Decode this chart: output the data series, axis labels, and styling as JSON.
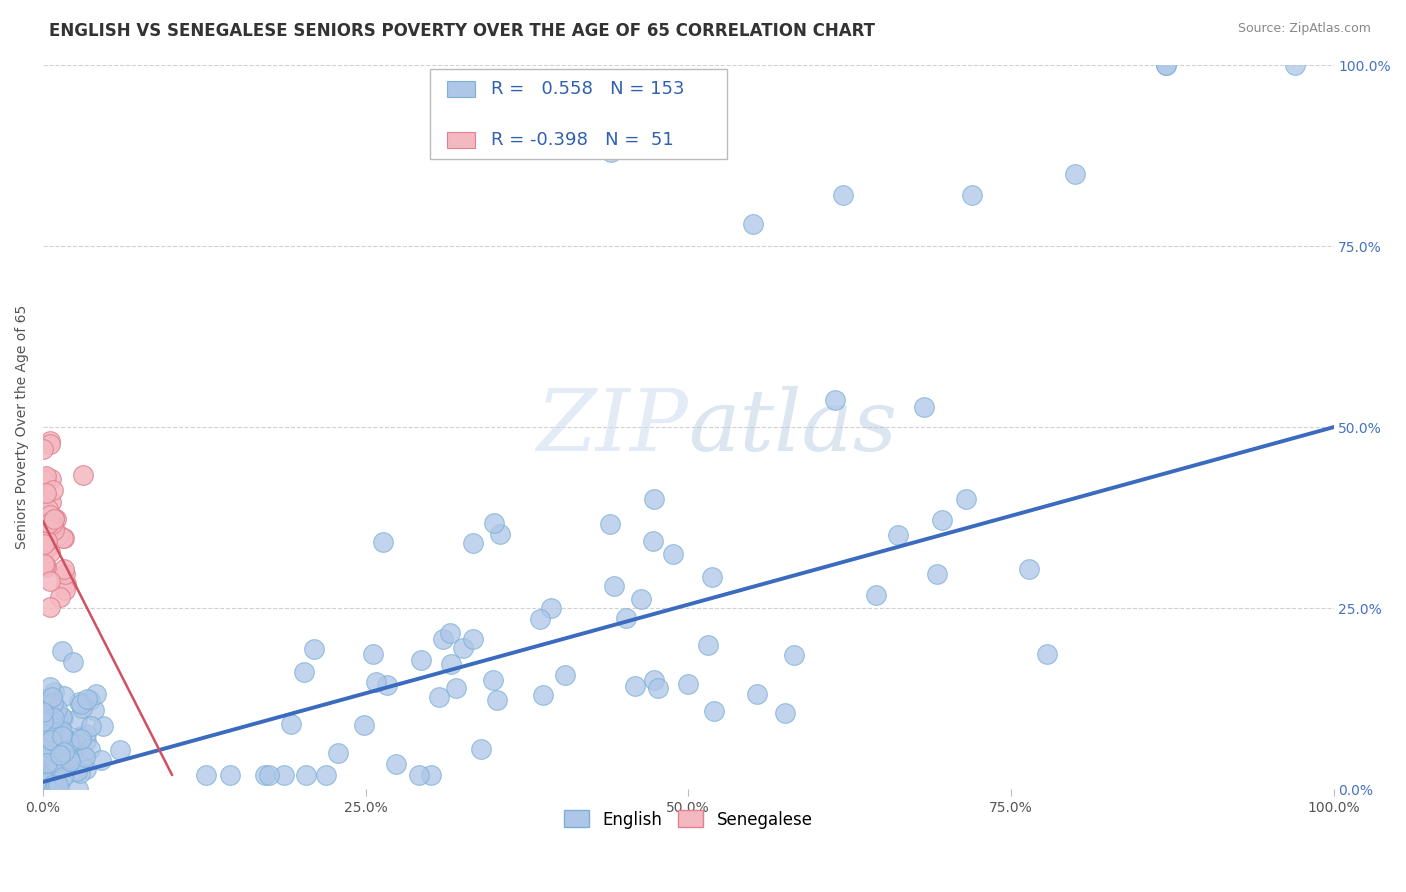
{
  "title": "ENGLISH VS SENEGALESE SENIORS POVERTY OVER THE AGE OF 65 CORRELATION CHART",
  "source": "Source: ZipAtlas.com",
  "ylabel": "Seniors Poverty Over the Age of 65",
  "xlim": [
    0.0,
    1.0
  ],
  "ylim": [
    0.0,
    1.0
  ],
  "xticks": [
    0.0,
    0.25,
    0.5,
    0.75,
    1.0
  ],
  "xticklabels": [
    "0.0%",
    "25.0%",
    "50.0%",
    "75.0%",
    "100.0%"
  ],
  "ytick_positions": [
    0.0,
    0.25,
    0.5,
    0.75,
    1.0
  ],
  "ytick_labels_right": [
    "0.0%",
    "25.0%",
    "50.0%",
    "75.0%",
    "100.0%"
  ],
  "grid_color": "#cccccc",
  "bg_color": "#ffffff",
  "english_color": "#aec6e8",
  "english_edge": "#7bafd4",
  "senegalese_color": "#f4b8c1",
  "senegalese_edge": "#e08090",
  "english_R": 0.558,
  "english_N": 153,
  "senegalese_R": -0.398,
  "senegalese_N": 51,
  "english_line_color": "#3a6bbf",
  "senegalese_line_color": "#d05060",
  "title_color": "#333333",
  "title_fontsize": 12,
  "label_fontsize": 10,
  "tick_fontsize": 10,
  "stat_fontsize": 13
}
